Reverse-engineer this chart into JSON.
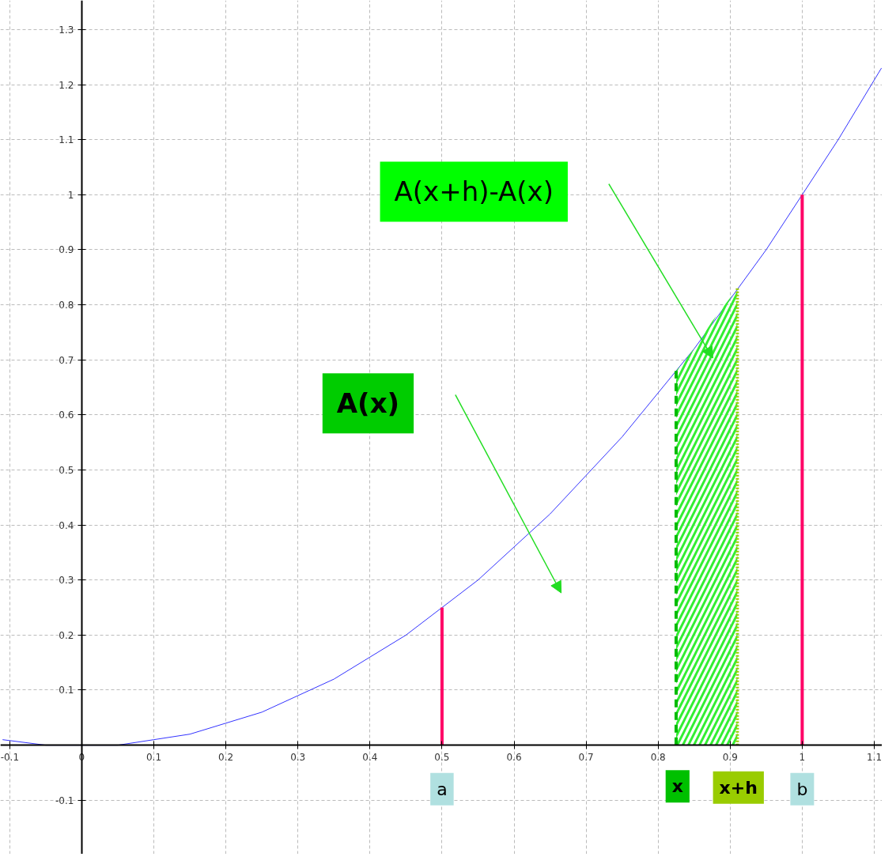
{
  "chart_data": {
    "type": "line",
    "xlim": [
      -0.113,
      1.111
    ],
    "ylim": [
      -0.198,
      1.353
    ],
    "xticks": [
      {
        "value": -0.1,
        "label": "-0.1"
      },
      0,
      0.1,
      0.2,
      0.3,
      0.4,
      0.5,
      0.6,
      0.7,
      0.8,
      0.9,
      1,
      1.1
    ],
    "yticks": [
      {
        "value": -0.1,
        "label": "-0.1"
      },
      {
        "value": 0,
        "label": null
      },
      0.1,
      0.2,
      0.3,
      0.4,
      0.5,
      0.6,
      0.7,
      0.8,
      0.9,
      1,
      1.1,
      1.2,
      1.3
    ],
    "grid": true,
    "marker": "none",
    "series": [
      {
        "color": "#3333ff",
        "x": [
          -0.11,
          -0.05,
          0,
          0.05,
          0.1,
          0.15,
          0.2,
          0.25,
          0.3,
          0.35,
          0.4,
          0.45,
          0.5,
          0.55,
          0.6,
          0.65,
          0.7,
          0.75,
          0.8,
          0.85,
          0.9,
          0.95,
          1,
          1.05,
          1.11
        ],
        "values": [
          0.01,
          0.0,
          0,
          0.0,
          0.01,
          0.02,
          0.04,
          0.06,
          0.09,
          0.12,
          0.16,
          0.2,
          0.25,
          0.3,
          0.36,
          0.42,
          0.49,
          0.56,
          0.64,
          0.72,
          0.81,
          0.9,
          1,
          1.1,
          1.23
        ]
      },
      {
        "type": "area",
        "color": "#33ee33",
        "x": [
          0.825,
          0.85,
          0.875,
          0.91
        ],
        "values": [
          0.68,
          0.72,
          0.77,
          0.83
        ]
      },
      {
        "color": "#ff0066",
        "x": [
          0.5,
          0.5
        ],
        "values": [
          0,
          0.25
        ]
      },
      {
        "color": "#ff0066",
        "x": [
          1,
          1
        ],
        "values": [
          0,
          1
        ]
      },
      {
        "color": "#00bb00",
        "line_style": "dashed",
        "x": [
          0.825,
          0.825
        ],
        "values": [
          0,
          0.68
        ]
      },
      {
        "color": "#99cc00",
        "line_style": "dotted",
        "x": [
          0.91,
          0.91
        ],
        "values": [
          0,
          0.83
        ]
      }
    ],
    "annotations": [
      "A(x+h)-A(x)",
      "A(x)",
      {
        "text": "a",
        "x": 0.5,
        "y": -0.08
      },
      {
        "text": "x",
        "x": 0.827,
        "y": -0.075
      },
      "x+h",
      {
        "text": "b",
        "x": 1,
        "y": -0.08
      }
    ]
  }
}
